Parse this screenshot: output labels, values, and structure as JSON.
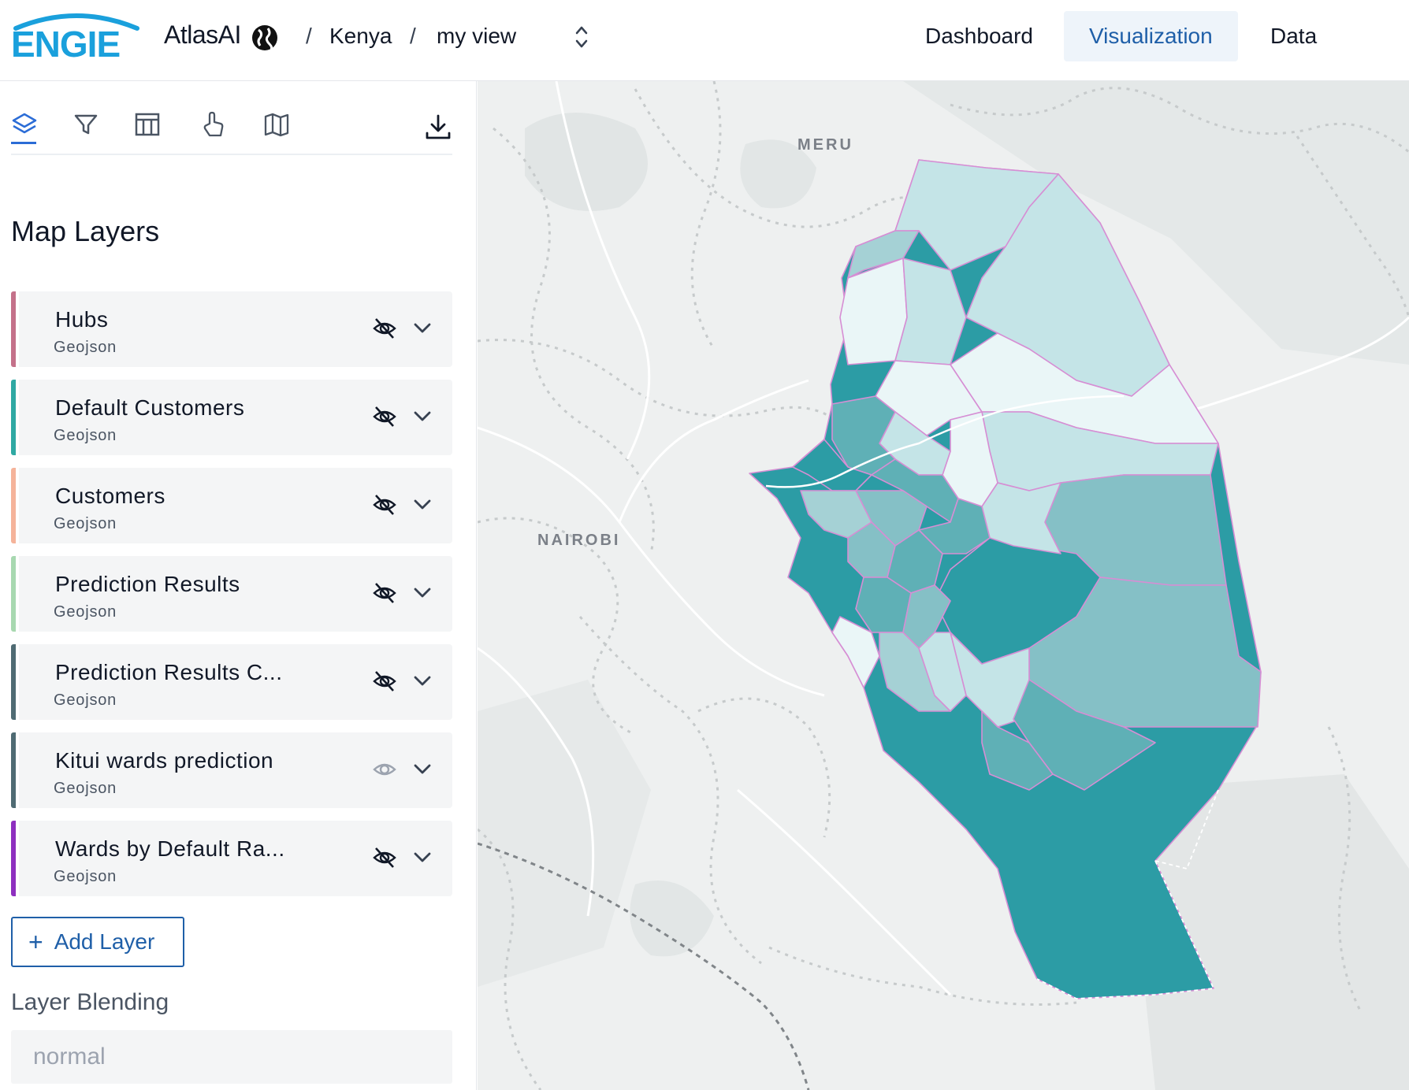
{
  "header": {
    "logo_text": "ENGIE",
    "brand": "AtlasAI",
    "breadcrumb": [
      "Kenya",
      "my view"
    ],
    "nav": [
      {
        "label": "Dashboard",
        "active": false
      },
      {
        "label": "Visualization",
        "active": true
      },
      {
        "label": "Data",
        "active": false
      }
    ]
  },
  "sidebar": {
    "tabs": [
      "layers-icon",
      "filter-icon",
      "table-icon",
      "pointer-icon",
      "map-icon"
    ],
    "download_icon": "download-icon",
    "title": "Map Layers",
    "layers": [
      {
        "name": "Hubs",
        "type": "Geojson",
        "color": "#c4718a",
        "visible": false
      },
      {
        "name": "Default Customers",
        "type": "Geojson",
        "color": "#2fa9a3",
        "visible": false
      },
      {
        "name": "Customers",
        "type": "Geojson",
        "color": "#f5b39a",
        "visible": false
      },
      {
        "name": "Prediction Results",
        "type": "Geojson",
        "color": "#a8d8b0",
        "visible": false
      },
      {
        "name": "Prediction Results C...",
        "type": "Geojson",
        "color": "#4f6b73",
        "visible": false
      },
      {
        "name": "Kitui wards prediction",
        "type": "Geojson",
        "color": "#4f6b73",
        "visible": true
      },
      {
        "name": "Wards by Default Ra...",
        "type": "Geojson",
        "color": "#8e2fbf",
        "visible": false
      }
    ],
    "add_layer_label": "Add Layer",
    "blending_label": "Layer Blending",
    "blending_value": "normal"
  },
  "map": {
    "labels": {
      "meru": "MERU",
      "nairobi": "NAIROBI"
    },
    "ward_colors": {
      "dark": "#2c9ca5",
      "mid": "#5fb0b6",
      "medium_light": "#85c0c6",
      "light": "#c4e4e7",
      "lightest": "#eaf6f7",
      "border": "#d68ed4"
    }
  }
}
